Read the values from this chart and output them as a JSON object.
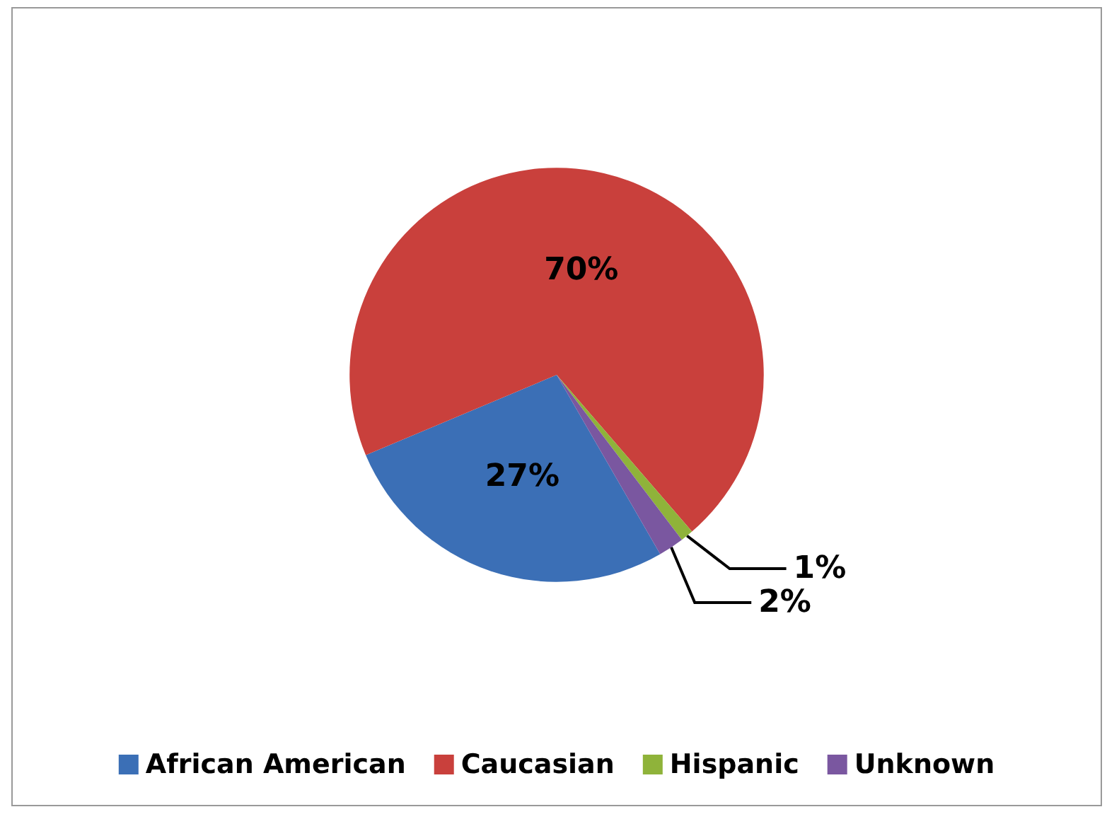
{
  "chart_data": {
    "type": "pie",
    "categories": [
      "African American",
      "Caucasian",
      "Hispanic",
      "Unknown"
    ],
    "values": [
      27,
      70,
      1,
      2
    ],
    "colors": [
      "#3b6fb6",
      "#c9403c",
      "#8fb33a",
      "#7a57a0"
    ],
    "value_labels": [
      "27%",
      "70%",
      "1%",
      "2%"
    ],
    "legend": "bottom"
  }
}
